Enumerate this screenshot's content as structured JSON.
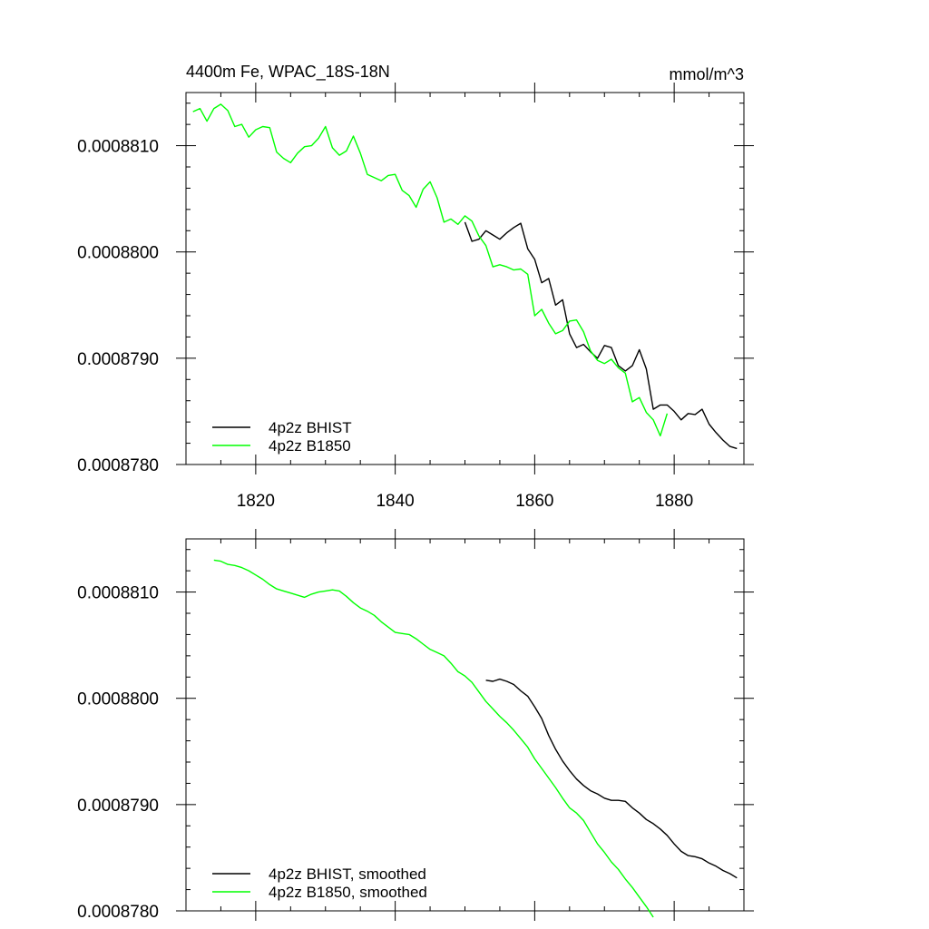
{
  "chart_data": [
    {
      "type": "line",
      "title": "4400m Fe, WPAC_18S-18N",
      "units": "mmol/m^3",
      "xlim": [
        1810,
        1890
      ],
      "ylim": [
        0.000878,
        0.0008815
      ],
      "x_ticks": [
        1820,
        1840,
        1860,
        1880
      ],
      "x_tick_labels": [
        "1820",
        "1840",
        "1860",
        "1880"
      ],
      "y_ticks": [
        0.000878,
        0.000879,
        0.00088,
        0.000881
      ],
      "y_tick_labels": [
        "0.0008780",
        "0.0008790",
        "0.0008800",
        "0.0008810"
      ],
      "legend_position": "bottom-left",
      "series": [
        {
          "name": "4p2z BHIST",
          "color": "#000000",
          "x": [
            1850,
            1851,
            1852,
            1853,
            1854,
            1855,
            1856,
            1857,
            1858,
            1859,
            1860,
            1861,
            1862,
            1863,
            1864,
            1865,
            1866,
            1867,
            1868,
            1869,
            1870,
            1871,
            1872,
            1873,
            1874,
            1875,
            1876,
            1877,
            1878,
            1879,
            1880,
            1881,
            1882,
            1883,
            1884,
            1885,
            1886,
            1887,
            1888,
            1889
          ],
          "y": [
            0.00088028,
            0.0008801,
            0.00088012,
            0.0008802,
            0.00088016,
            0.00088012,
            0.00088018,
            0.00088023,
            0.00088027,
            0.00088003,
            0.00087993,
            0.00087971,
            0.00087975,
            0.0008795,
            0.00087955,
            0.00087923,
            0.0008791,
            0.00087913,
            0.00087906,
            0.000879,
            0.00087912,
            0.0008791,
            0.00087893,
            0.00087888,
            0.00087893,
            0.00087908,
            0.0008789,
            0.00087852,
            0.00087856,
            0.00087856,
            0.0008785,
            0.00087842,
            0.00087848,
            0.00087847,
            0.00087852,
            0.00087838,
            0.0008783,
            0.00087823,
            0.00087817,
            0.00087815
          ]
        },
        {
          "name": "4p2z B1850",
          "color": "#00ff00",
          "x": [
            1811,
            1812,
            1813,
            1814,
            1815,
            1816,
            1817,
            1818,
            1819,
            1820,
            1821,
            1822,
            1823,
            1824,
            1825,
            1826,
            1827,
            1828,
            1829,
            1830,
            1831,
            1832,
            1833,
            1834,
            1835,
            1836,
            1837,
            1838,
            1839,
            1840,
            1841,
            1842,
            1843,
            1844,
            1845,
            1846,
            1847,
            1848,
            1849,
            1850,
            1851,
            1852,
            1853,
            1854,
            1855,
            1856,
            1857,
            1858,
            1859,
            1860,
            1861,
            1862,
            1863,
            1864,
            1865,
            1866,
            1867,
            1868,
            1869,
            1870,
            1871,
            1872,
            1873,
            1874,
            1875,
            1876,
            1877,
            1878,
            1879
          ],
          "y": [
            0.00088132,
            0.00088135,
            0.00088123,
            0.00088135,
            0.00088139,
            0.00088133,
            0.00088118,
            0.0008812,
            0.00088108,
            0.00088115,
            0.00088118,
            0.00088117,
            0.00088094,
            0.00088088,
            0.00088084,
            0.00088093,
            0.00088099,
            0.000881,
            0.00088107,
            0.00088118,
            0.00088098,
            0.00088091,
            0.00088095,
            0.00088109,
            0.00088093,
            0.00088073,
            0.0008807,
            0.00088067,
            0.00088072,
            0.00088073,
            0.00088058,
            0.00088053,
            0.00088042,
            0.00088059,
            0.00088066,
            0.00088051,
            0.00088028,
            0.00088031,
            0.00088026,
            0.00088034,
            0.00088029,
            0.00088015,
            0.00088006,
            0.00087986,
            0.00087988,
            0.00087986,
            0.00087983,
            0.00087984,
            0.00087979,
            0.0008794,
            0.00087946,
            0.00087933,
            0.00087923,
            0.00087926,
            0.00087935,
            0.00087936,
            0.00087925,
            0.00087907,
            0.00087898,
            0.00087895,
            0.00087899,
            0.00087891,
            0.00087886,
            0.00087859,
            0.00087863,
            0.00087849,
            0.00087842,
            0.00087827,
            0.00087848
          ]
        }
      ]
    },
    {
      "type": "line",
      "title": "",
      "units": "",
      "xlim": [
        1810,
        1890
      ],
      "ylim": [
        0.000878,
        0.0008815
      ],
      "x_ticks": [
        1820,
        1840,
        1860,
        1880
      ],
      "x_tick_labels": [],
      "y_ticks": [
        0.000878,
        0.000879,
        0.00088,
        0.000881
      ],
      "y_tick_labels": [
        "0.0008780",
        "0.0008790",
        "0.0008800",
        "0.0008810"
      ],
      "legend_position": "bottom-left",
      "series": [
        {
          "name": "4p2z BHIST, smoothed",
          "color": "#000000",
          "x": [
            1853,
            1854,
            1855,
            1856,
            1857,
            1858,
            1859,
            1860,
            1861,
            1862,
            1863,
            1864,
            1865,
            1866,
            1867,
            1868,
            1869,
            1870,
            1871,
            1872,
            1873,
            1874,
            1875,
            1876,
            1877,
            1878,
            1879,
            1880,
            1881,
            1882,
            1883,
            1884,
            1885,
            1886,
            1887,
            1888,
            1889
          ],
          "y": [
            0.00088017,
            0.00088016,
            0.00088018,
            0.00088016,
            0.00088013,
            0.00088007,
            0.00088002,
            0.00087992,
            0.00087981,
            0.00087965,
            0.00087952,
            0.00087941,
            0.00087932,
            0.00087924,
            0.00087918,
            0.00087913,
            0.0008791,
            0.00087906,
            0.00087904,
            0.00087904,
            0.00087903,
            0.00087897,
            0.00087892,
            0.00087886,
            0.00087882,
            0.00087877,
            0.00087871,
            0.00087863,
            0.00087856,
            0.00087852,
            0.00087851,
            0.00087849,
            0.00087845,
            0.00087842,
            0.00087838,
            0.00087835,
            0.00087831
          ]
        },
        {
          "name": "4p2z B1850, smoothed",
          "color": "#00ff00",
          "x": [
            1814,
            1815,
            1816,
            1817,
            1818,
            1819,
            1820,
            1821,
            1822,
            1823,
            1824,
            1825,
            1826,
            1827,
            1828,
            1829,
            1830,
            1831,
            1832,
            1833,
            1834,
            1835,
            1836,
            1837,
            1838,
            1839,
            1840,
            1841,
            1842,
            1843,
            1844,
            1845,
            1846,
            1847,
            1848,
            1849,
            1850,
            1851,
            1852,
            1853,
            1854,
            1855,
            1856,
            1857,
            1858,
            1859,
            1860,
            1861,
            1862,
            1863,
            1864,
            1865,
            1866,
            1867,
            1868,
            1869,
            1870,
            1871,
            1872,
            1873,
            1874,
            1875,
            1876,
            1877
          ],
          "y": [
            0.0008813,
            0.00088129,
            0.00088126,
            0.00088125,
            0.00088123,
            0.0008812,
            0.00088116,
            0.00088112,
            0.00088107,
            0.00088103,
            0.00088101,
            0.00088099,
            0.00088097,
            0.00088095,
            0.00088098,
            0.000881,
            0.00088101,
            0.00088102,
            0.00088101,
            0.00088096,
            0.0008809,
            0.00088085,
            0.00088082,
            0.00088078,
            0.00088072,
            0.00088067,
            0.00088062,
            0.00088061,
            0.0008806,
            0.00088056,
            0.00088051,
            0.00088046,
            0.00088043,
            0.0008804,
            0.00088033,
            0.00088025,
            0.00088021,
            0.00088015,
            0.00088006,
            0.00087997,
            0.0008799,
            0.00087983,
            0.00087977,
            0.0008797,
            0.00087962,
            0.00087954,
            0.00087943,
            0.00087934,
            0.00087925,
            0.00087916,
            0.00087906,
            0.00087897,
            0.00087892,
            0.00087885,
            0.00087874,
            0.00087863,
            0.00087855,
            0.00087846,
            0.00087839,
            0.0008783,
            0.00087822,
            0.00087813,
            0.00087804,
            0.00087794
          ]
        }
      ]
    }
  ]
}
